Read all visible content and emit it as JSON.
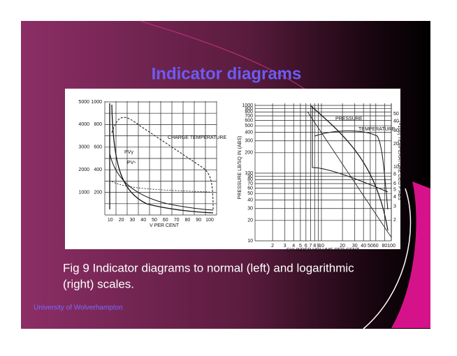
{
  "slide": {
    "title": "Indicator diagrams",
    "figure": {
      "left": {
        "y_ticks_outer": [
          5000,
          4000,
          3000,
          2000,
          1000
        ],
        "y_ticks_inner": [
          1000,
          800,
          600,
          400,
          200
        ],
        "x_ticks": [
          10,
          20,
          30,
          40,
          50,
          60,
          70,
          80,
          90,
          100
        ],
        "x_label": "V PER CENT",
        "annotations": [
          "CHARGE TEMPERATURE",
          "PVγ",
          "PVⁿ"
        ]
      },
      "right": {
        "y_ticks": [
          1000,
          900,
          800,
          700,
          600,
          500,
          400,
          300,
          200,
          100,
          90,
          80,
          70,
          60,
          50,
          40,
          30,
          20,
          10
        ],
        "x_ticks": [
          2,
          3,
          4,
          5,
          6,
          7,
          8,
          9,
          10,
          20,
          30,
          40,
          50,
          60,
          80,
          100
        ],
        "y2_ticks": [
          50,
          40,
          30,
          20,
          10,
          8,
          6,
          5,
          4,
          3,
          2
        ],
        "x_label": "CYLINDER VOLUME PER CENT",
        "y_label": "PRESSURE LB/SQ IN (ABS)",
        "y2_label": "(×100) TEMPERATURE DEG F ABS",
        "annotations": [
          "PRESSURE",
          "TEMPERATURE"
        ]
      }
    },
    "caption": [
      "Fig 9 Indicator diagrams to normal (left) and logarithmic",
      "(right) scales."
    ],
    "footer": "University of Wolverhampton"
  }
}
